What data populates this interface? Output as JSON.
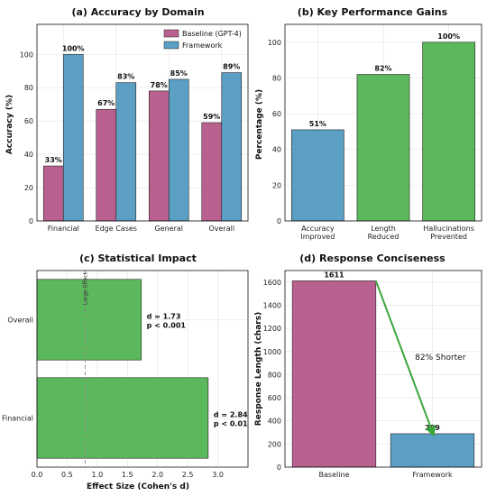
{
  "chart_data": [
    {
      "type": "bar",
      "title": "(a) Accuracy by Domain",
      "ylabel": "Accuracy (%)",
      "xlabel": "",
      "categories": [
        "Financial",
        "Edge Cases",
        "General",
        "Overall"
      ],
      "series": [
        {
          "name": "Baseline (GPT-4)",
          "values": [
            33,
            67,
            78,
            59
          ],
          "labels": [
            "33%",
            "67%",
            "78%",
            "59%"
          ],
          "color": "#b8618f"
        },
        {
          "name": "Framework",
          "values": [
            100,
            83,
            85,
            89
          ],
          "labels": [
            "100%",
            "83%",
            "85%",
            "89%"
          ],
          "color": "#5b9fc4"
        }
      ],
      "ylim": [
        0,
        118
      ],
      "yticks": [
        0,
        20,
        40,
        60,
        80,
        100
      ],
      "legend": "top-right",
      "grid": true
    },
    {
      "type": "bar",
      "title": "(b) Key Performance Gains",
      "ylabel": "Percentage (%)",
      "xlabel": "",
      "categories": [
        [
          "Accuracy",
          "Improved"
        ],
        [
          "Length",
          "Reduced"
        ],
        [
          "Hallucinations",
          "Prevented"
        ]
      ],
      "values": [
        51,
        82,
        100
      ],
      "labels": [
        "51%",
        "82%",
        "100%"
      ],
      "colors": [
        "#5b9fc4",
        "#5cb85c",
        "#5cb85c"
      ],
      "ylim": [
        0,
        110
      ],
      "yticks": [
        0,
        20,
        40,
        60,
        80,
        100
      ],
      "grid": true
    },
    {
      "type": "bar",
      "orientation": "horizontal",
      "title": "(c) Statistical Impact",
      "xlabel": "Effect Size (Cohen's d)",
      "ylabel": "",
      "categories": [
        "Overall",
        "Financial"
      ],
      "values": [
        1.73,
        2.84
      ],
      "annotations": [
        [
          "d = 1.73",
          "p < 0.001"
        ],
        [
          "d = 2.84",
          "p < 0.01"
        ]
      ],
      "color": "#5cb85c",
      "xlim": [
        0,
        3.5
      ],
      "xticks": [
        0.0,
        0.5,
        1.0,
        1.5,
        2.0,
        2.5,
        3.0
      ],
      "xtick_labels": [
        "0.0",
        "0.5",
        "1.0",
        "1.5",
        "2.0",
        "2.5",
        "3.0"
      ],
      "reference_line": {
        "value": 0.8,
        "label": "Large Effect"
      },
      "grid": true
    },
    {
      "type": "bar",
      "title": "(d) Response Conciseness",
      "ylabel": "Response Length (chars)",
      "xlabel": "",
      "categories": [
        "Baseline",
        "Framework"
      ],
      "values": [
        1611,
        289
      ],
      "labels": [
        "1611",
        "289"
      ],
      "colors": [
        "#b8618f",
        "#5b9fc4"
      ],
      "ylim": [
        0,
        1700
      ],
      "yticks": [
        0,
        200,
        400,
        600,
        800,
        1000,
        1200,
        1400,
        1600
      ],
      "arrow": {
        "from": "Baseline",
        "to": "Framework",
        "label": "82% Shorter",
        "color": "#3aa63a"
      },
      "grid": true
    }
  ]
}
